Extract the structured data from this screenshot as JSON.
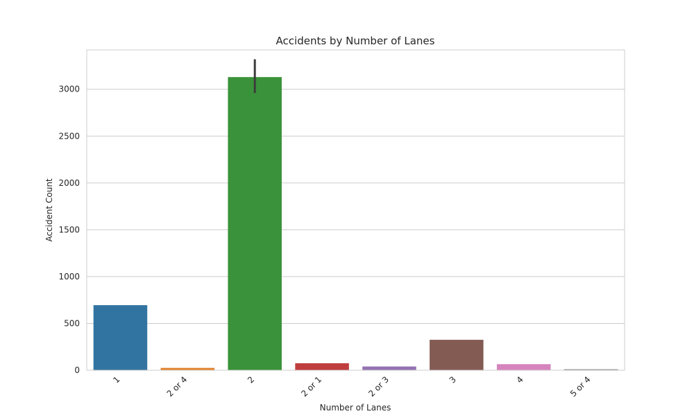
{
  "chart_data": {
    "type": "bar",
    "title": "Accidents by Number of Lanes",
    "xlabel": "Number of Lanes",
    "ylabel": "Accident Count",
    "categories": [
      "1",
      "2 or 4",
      "2",
      "2 or 1",
      "2 or 3",
      "3",
      "4",
      "5 or 4"
    ],
    "values": [
      695,
      25,
      3130,
      75,
      40,
      325,
      65,
      10
    ],
    "error_bars": [
      null,
      null,
      [
        2960,
        3320
      ],
      null,
      null,
      null,
      null,
      null
    ],
    "colors": [
      "#3274a1",
      "#e1812c",
      "#3a923a",
      "#c03d3e",
      "#9372b2",
      "#845b53",
      "#d684bd",
      "#7f7f7f"
    ],
    "ylim": [
      0,
      3420
    ],
    "yticks": [
      0,
      500,
      1000,
      1500,
      2000,
      2500,
      3000
    ],
    "grid": true,
    "xtick_rotation": 45
  }
}
